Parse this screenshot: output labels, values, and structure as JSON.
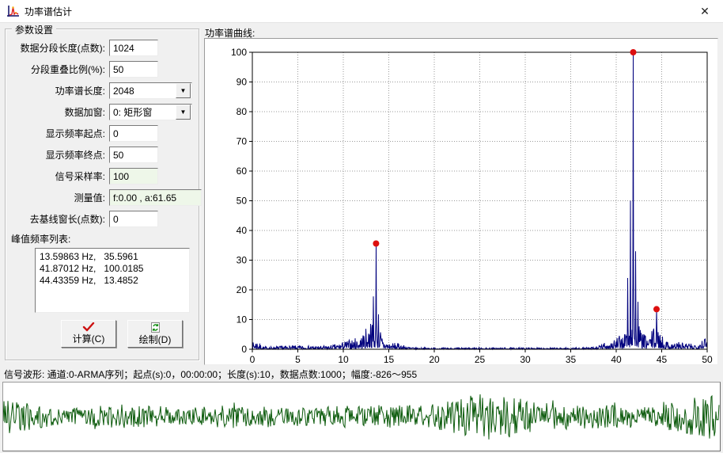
{
  "window": {
    "title": "功率谱估计",
    "close_glyph": "✕"
  },
  "panel": {
    "title": "参数设置",
    "fields": [
      {
        "label": "数据分段长度(点数):",
        "value": "1024"
      },
      {
        "label": "分段重叠比例(%):",
        "value": "50"
      },
      {
        "label": "功率谱长度:",
        "value": "2048"
      },
      {
        "label": "数据加窗:",
        "value": "0: 矩形窗"
      },
      {
        "label": "显示频率起点:",
        "value": "0"
      },
      {
        "label": "显示频率终点:",
        "value": "50"
      },
      {
        "label": "信号采样率:",
        "value": "100"
      },
      {
        "label": "测量值:",
        "value": "f:0.00 , a:61.65"
      },
      {
        "label": "去基线窗长(点数):",
        "value": "0"
      }
    ],
    "peak_list": {
      "label": "峰值频率列表:",
      "items": [
        "13.59863 Hz,   35.5961",
        "41.87012 Hz,   100.0185",
        "44.43359 Hz,   13.4852"
      ]
    },
    "buttons": [
      {
        "label": "计算(C)",
        "icon": "check-icon"
      },
      {
        "label": "绘制(D)",
        "icon": "redraw-icon"
      }
    ]
  },
  "chart_data": {
    "type": "line",
    "title": "功率谱曲线:",
    "xlabel": "",
    "ylabel": "",
    "xlim": [
      0,
      50
    ],
    "ylim": [
      0,
      100
    ],
    "x_tick_step": 5,
    "y_tick_step": 10,
    "grid": true,
    "legend": "none",
    "line_color": "#00007d",
    "marker_color": "#dd0f0f",
    "grid_color": "#9a9a9a",
    "peaks": [
      {
        "x": 13.59863,
        "y": 35.5961
      },
      {
        "x": 41.87012,
        "y": 100.0185
      },
      {
        "x": 44.43359,
        "y": 13.4852
      }
    ],
    "sub_spikes": [
      {
        "dx": -0.3,
        "ratio": 0.5
      },
      {
        "dx": 0.25,
        "ratio": 0.33
      },
      {
        "dx": -0.6,
        "ratio": 0.24
      },
      {
        "dx": 0.5,
        "ratio": 0.16
      }
    ],
    "noise_envelope": [
      {
        "center": 0.4,
        "sigma": 0.5,
        "amp": 2.5
      },
      {
        "center": 5.0,
        "sigma": 4.0,
        "amp": 0.7
      },
      {
        "center": 11.5,
        "sigma": 2.2,
        "amp": 3.0
      },
      {
        "center": 13.3,
        "sigma": 1.1,
        "amp": 7.0
      },
      {
        "center": 15.8,
        "sigma": 1.2,
        "amp": 1.5
      },
      {
        "center": 39.8,
        "sigma": 1.5,
        "amp": 3.0
      },
      {
        "center": 41.9,
        "sigma": 1.1,
        "amp": 10.0
      },
      {
        "center": 44.3,
        "sigma": 1.0,
        "amp": 6.0
      },
      {
        "center": 46.8,
        "sigma": 2.0,
        "amp": 2.0
      },
      {
        "center": 49.6,
        "sigma": 0.8,
        "amp": 3.5
      }
    ],
    "base_noise": 0.55,
    "seed": 7
  },
  "waveform": {
    "label": "信号波形: 通道:0-ARMA序列；起点(s):0，00:00:00；长度(s):10，数据点数:1000；幅度:-826～955",
    "color": "#0b5a0b",
    "seed": 21
  }
}
